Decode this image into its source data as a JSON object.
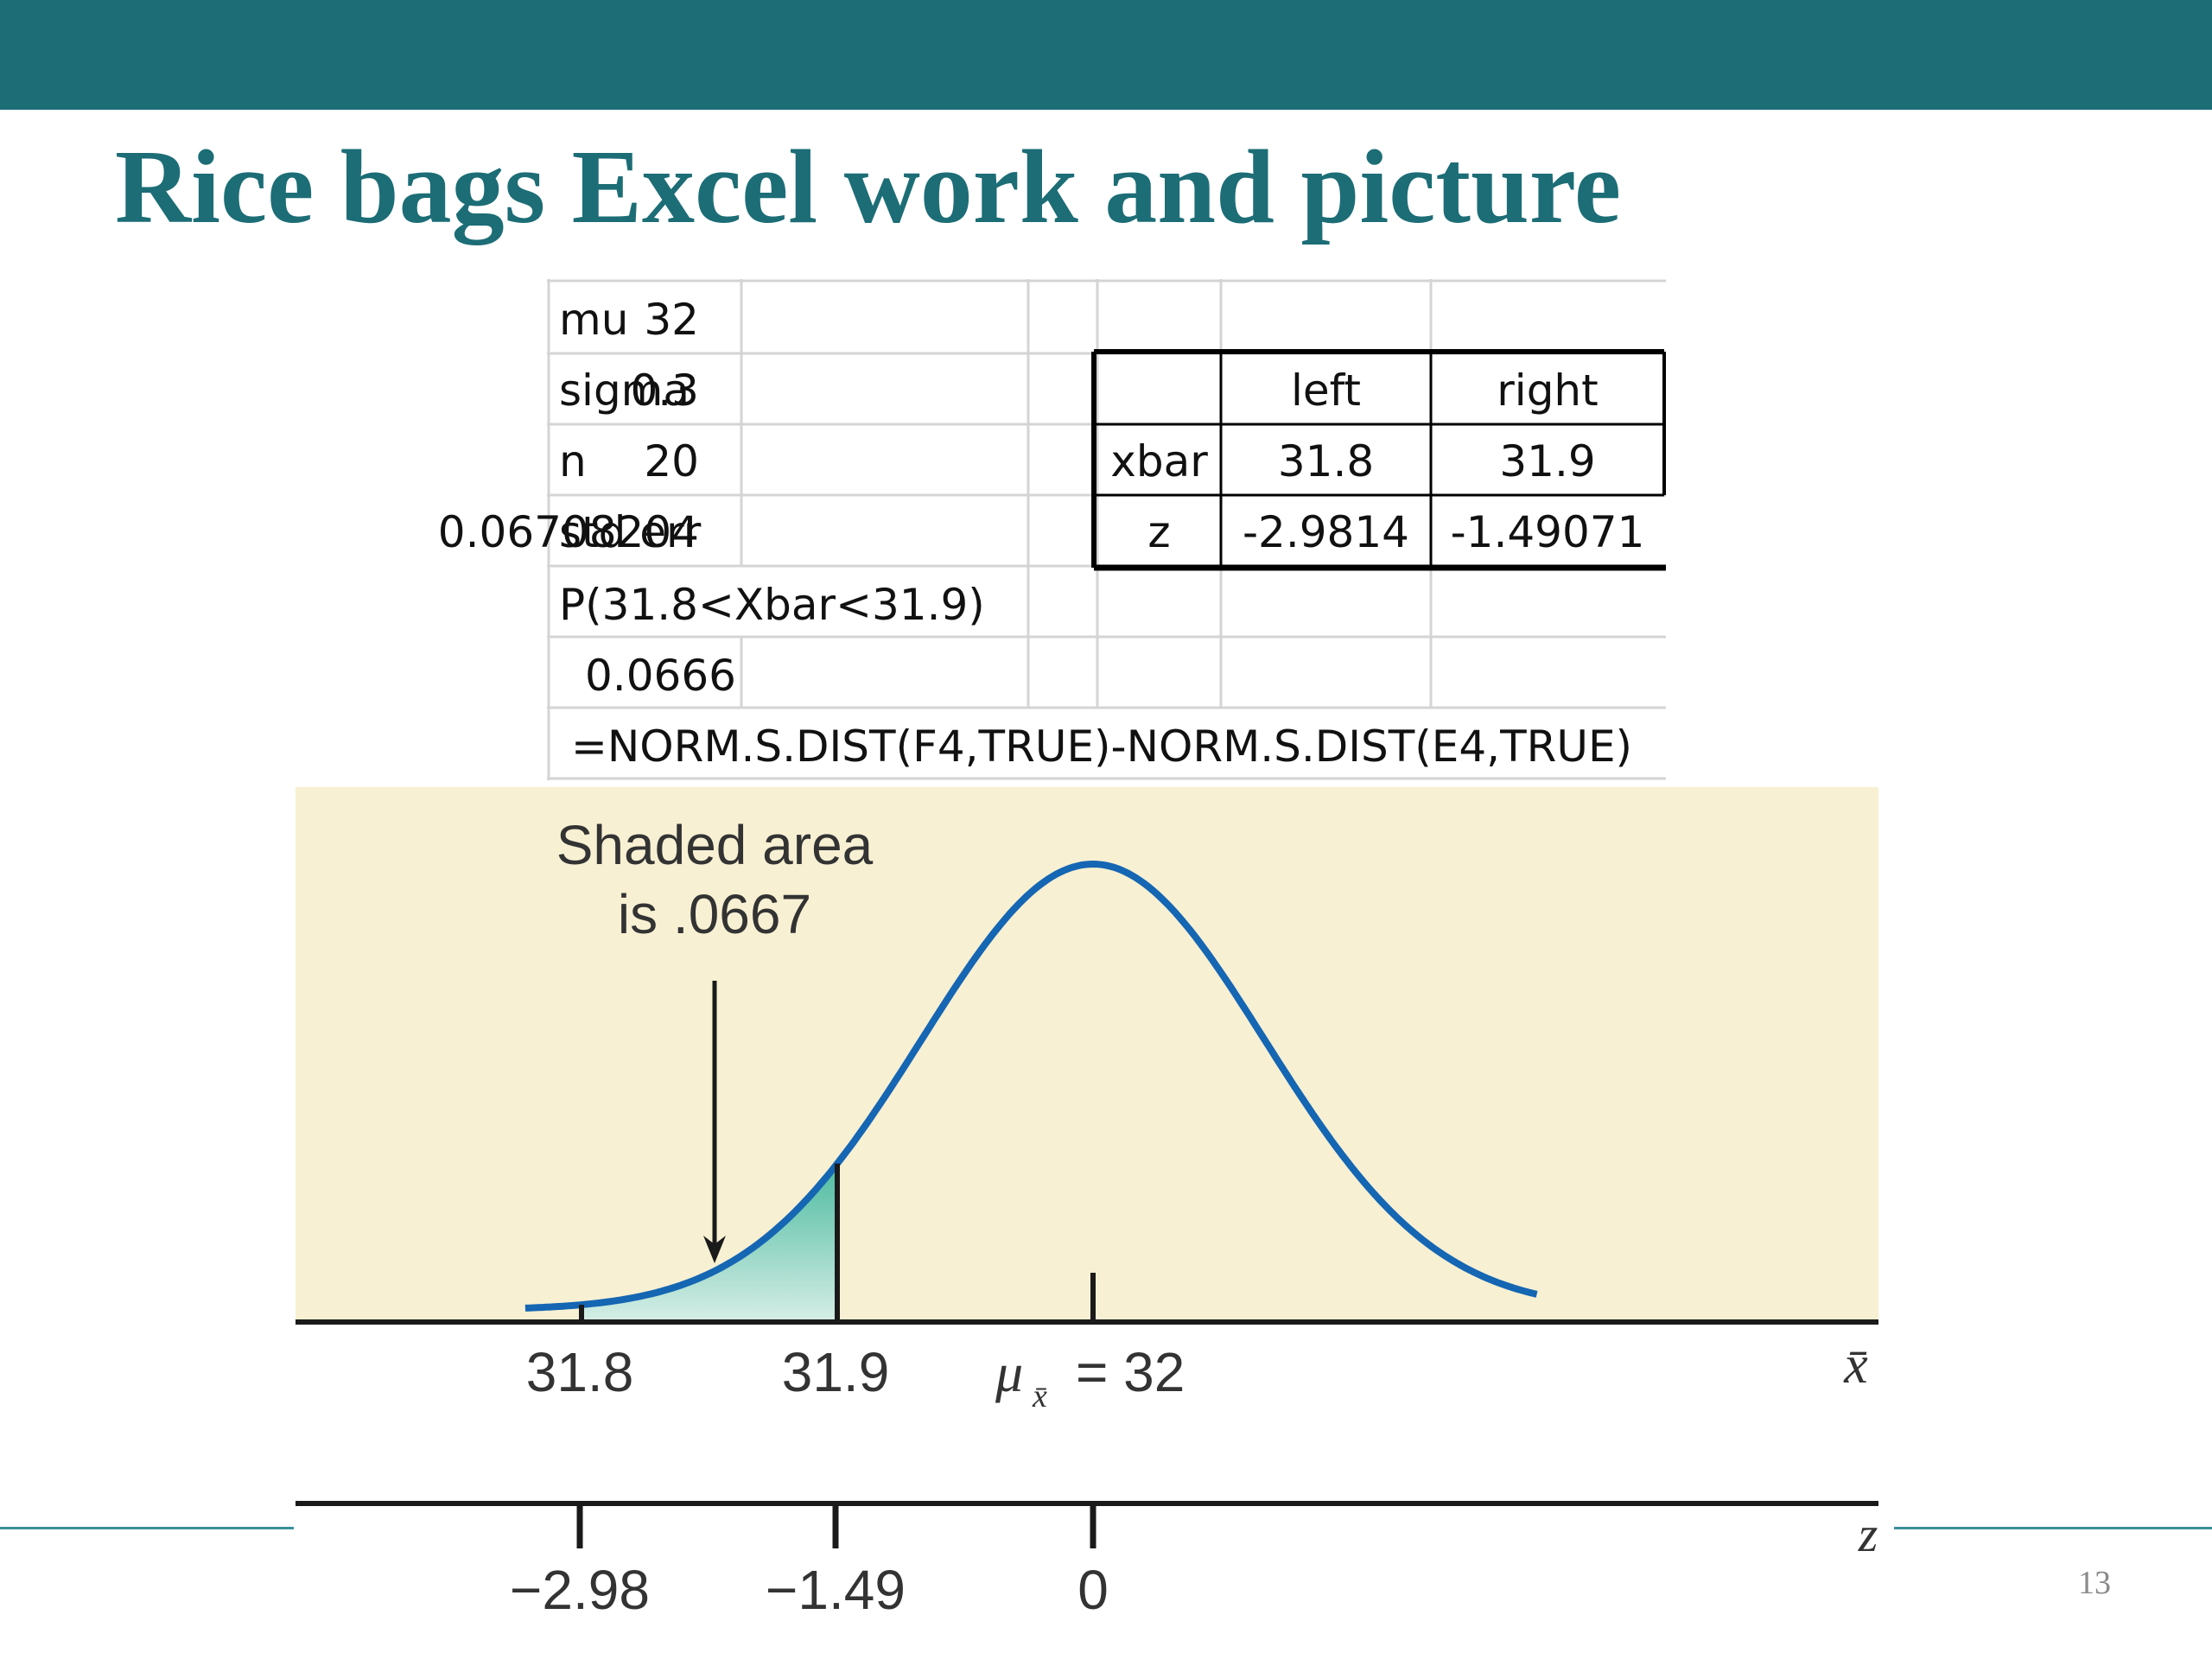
{
  "slide": {
    "title": "Rice bags Excel work and picture",
    "page_number": "13",
    "accent_color": "#1c6d76"
  },
  "spreadsheet": {
    "params": [
      {
        "label": "mu",
        "value": "32"
      },
      {
        "label": "sigma",
        "value": "0.3"
      },
      {
        "label": "n",
        "value": "20"
      },
      {
        "label": "std err",
        "value": "0.06708204"
      }
    ],
    "z_table": {
      "headers": [
        "",
        "left",
        "right"
      ],
      "rows": [
        {
          "label": "xbar",
          "left": "31.8",
          "right": "31.9"
        },
        {
          "label": "z",
          "left": "-2.9814",
          "right": "-1.49071"
        }
      ]
    },
    "prob_label": "P(31.8<Xbar<31.9)",
    "prob_value": "0.0666",
    "formula": "=NORM.S.DIST(F4,TRUE)-NORM.S.DIST(E4,TRUE)"
  },
  "figure": {
    "annotation_line1": "Shaded area",
    "annotation_line2": "is .0667",
    "x_ticks": [
      "31.8",
      "31.9"
    ],
    "mu_symbol": "μ",
    "mu_subscript": "x̄",
    "mu_value": "= 32",
    "x_axis_label": "x̄",
    "z_ticks": [
      "−2.98",
      "−1.49",
      "0"
    ],
    "z_axis_label": "z",
    "background_color": "#f7f0d3",
    "curve_color": "#1566b3",
    "shade_color": "#4dbba0"
  },
  "chart_data": {
    "type": "area",
    "distribution": "normal",
    "mean": 32,
    "std_err": 0.067,
    "shaded_interval": [
      31.8,
      31.9
    ],
    "shaded_area": 0.0667,
    "x_ticks": [
      31.8,
      31.9,
      32
    ],
    "z_ticks": [
      -2.98,
      -1.49,
      0
    ]
  }
}
